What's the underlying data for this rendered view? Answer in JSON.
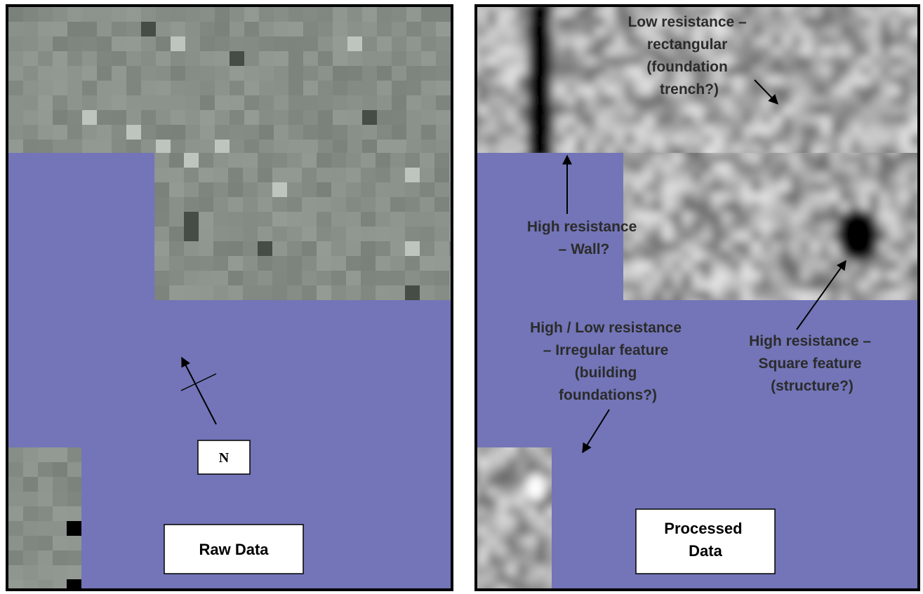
{
  "left_panel": {
    "north_label": "N",
    "label": "Raw Data"
  },
  "right_panel": {
    "label": [
      "Processed",
      "Data"
    ],
    "annotations": [
      {
        "lines": [
          "Low resistance –",
          "rectangular",
          "(foundation",
          "trench?)"
        ]
      },
      {
        "lines": [
          "High resistance",
          "– Wall?"
        ]
      },
      {
        "lines": [
          "High / Low resistance",
          "– Irregular feature",
          "(building",
          "foundations?)"
        ]
      },
      {
        "lines": [
          "High resistance –",
          "Square feature",
          "(structure?)"
        ]
      }
    ]
  }
}
